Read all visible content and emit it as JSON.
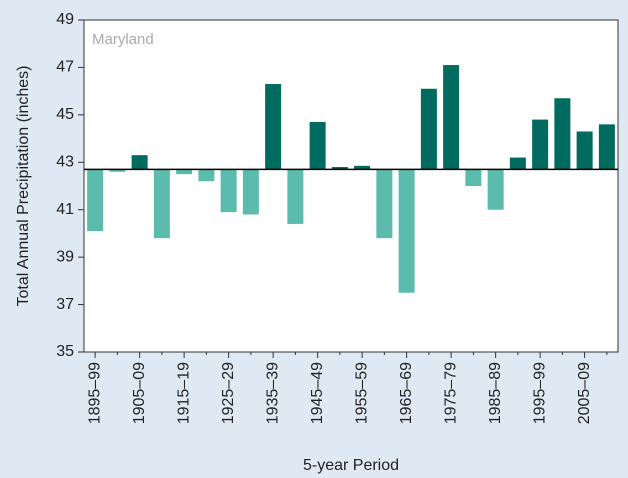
{
  "chart_data": {
    "type": "bar",
    "title": "Maryland",
    "x_label": "5-year Period",
    "y_label": "Total Annual Precipitation (inches)",
    "categories": [
      "1895–99",
      null,
      "1905–09",
      null,
      "1915–19",
      null,
      "1925–29",
      null,
      "1935–39",
      null,
      "1945–49",
      null,
      "1955–59",
      null,
      "1965–69",
      null,
      "1975–79",
      null,
      "1985–89",
      null,
      "1995–99",
      null,
      "2005–09",
      null
    ],
    "values": [
      40.1,
      42.6,
      43.3,
      39.8,
      42.5,
      42.2,
      40.9,
      40.8,
      46.3,
      40.4,
      44.7,
      42.8,
      42.85,
      39.8,
      37.5,
      46.1,
      47.1,
      42.0,
      41.0,
      43.2,
      44.8,
      45.7,
      44.3,
      44.6
    ],
    "baseline": 42.7,
    "color_above": "#006b5e",
    "color_below": "#5bbcad",
    "ylim": [
      35,
      49
    ],
    "yticks": [
      35,
      37,
      39,
      41,
      43,
      45,
      47,
      49
    ],
    "grid": false
  }
}
